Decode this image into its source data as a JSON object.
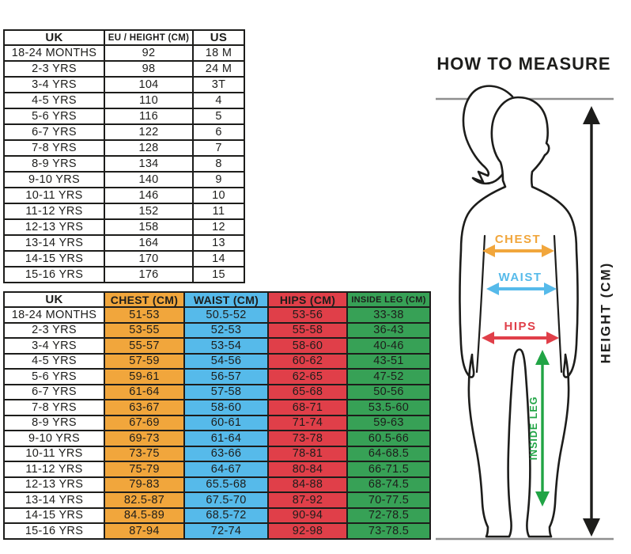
{
  "size_table": {
    "headers": [
      "UK",
      "EU / HEIGHT (CM)",
      "US"
    ],
    "rows": [
      [
        "18-24 MONTHS",
        "92",
        "18 M"
      ],
      [
        "2-3 YRS",
        "98",
        "24 M"
      ],
      [
        "3-4 YRS",
        "104",
        "3T"
      ],
      [
        "4-5 YRS",
        "110",
        "4"
      ],
      [
        "5-6 YRS",
        "116",
        "5"
      ],
      [
        "6-7 YRS",
        "122",
        "6"
      ],
      [
        "7-8 YRS",
        "128",
        "7"
      ],
      [
        "8-9 YRS",
        "134",
        "8"
      ],
      [
        "9-10 YRS",
        "140",
        "9"
      ],
      [
        "10-11 YRS",
        "146",
        "10"
      ],
      [
        "11-12 YRS",
        "152",
        "11"
      ],
      [
        "12-13 YRS",
        "158",
        "12"
      ],
      [
        "13-14 YRS",
        "164",
        "13"
      ],
      [
        "14-15 YRS",
        "170",
        "14"
      ],
      [
        "15-16 YRS",
        "176",
        "15"
      ]
    ]
  },
  "measurements_table": {
    "headers": [
      "UK",
      "CHEST (CM)",
      "WAIST (CM)",
      "HIPS (CM)",
      "INSIDE LEG (CM)"
    ],
    "rows": [
      [
        "18-24 MONTHS",
        "51-53",
        "50.5-52",
        "53-56",
        "33-38"
      ],
      [
        "2-3 YRS",
        "53-55",
        "52-53",
        "55-58",
        "36-43"
      ],
      [
        "3-4 YRS",
        "55-57",
        "53-54",
        "58-60",
        "40-46"
      ],
      [
        "4-5 YRS",
        "57-59",
        "54-56",
        "60-62",
        "43-51"
      ],
      [
        "5-6 YRS",
        "59-61",
        "56-57",
        "62-65",
        "47-52"
      ],
      [
        "6-7 YRS",
        "61-64",
        "57-58",
        "65-68",
        "50-56"
      ],
      [
        "7-8 YRS",
        "63-67",
        "58-60",
        "68-71",
        "53.5-60"
      ],
      [
        "8-9 YRS",
        "67-69",
        "60-61",
        "71-74",
        "59-63"
      ],
      [
        "9-10 YRS",
        "69-73",
        "61-64",
        "73-78",
        "60.5-66"
      ],
      [
        "10-11 YRS",
        "73-75",
        "63-66",
        "78-81",
        "64-68.5"
      ],
      [
        "11-12 YRS",
        "75-79",
        "64-67",
        "80-84",
        "66-71.5"
      ],
      [
        "12-13 YRS",
        "79-83",
        "65.5-68",
        "84-88",
        "68-74.5"
      ],
      [
        "13-14 YRS",
        "82.5-87",
        "67.5-70",
        "87-92",
        "70-77.5"
      ],
      [
        "14-15 YRS",
        "84.5-89",
        "68.5-72",
        "90-94",
        "72-78.5"
      ],
      [
        "15-16 YRS",
        "87-94",
        "72-74",
        "92-98",
        "73-78.5"
      ]
    ]
  },
  "diagram": {
    "title": "HOW TO MEASURE",
    "labels": {
      "chest": "CHEST",
      "waist": "WAIST",
      "hips": "HIPS",
      "inside_leg": "INSIDE LEG",
      "height": "HEIGHT (CM)"
    }
  },
  "colors": {
    "chest": "#F1A63C",
    "waist": "#56BAEA",
    "hips": "#E03F49",
    "inside_leg": "#37A156",
    "arrow_green": "#21A445",
    "line_gray": "#8F8F8F",
    "ink": "#1D1D1B"
  }
}
